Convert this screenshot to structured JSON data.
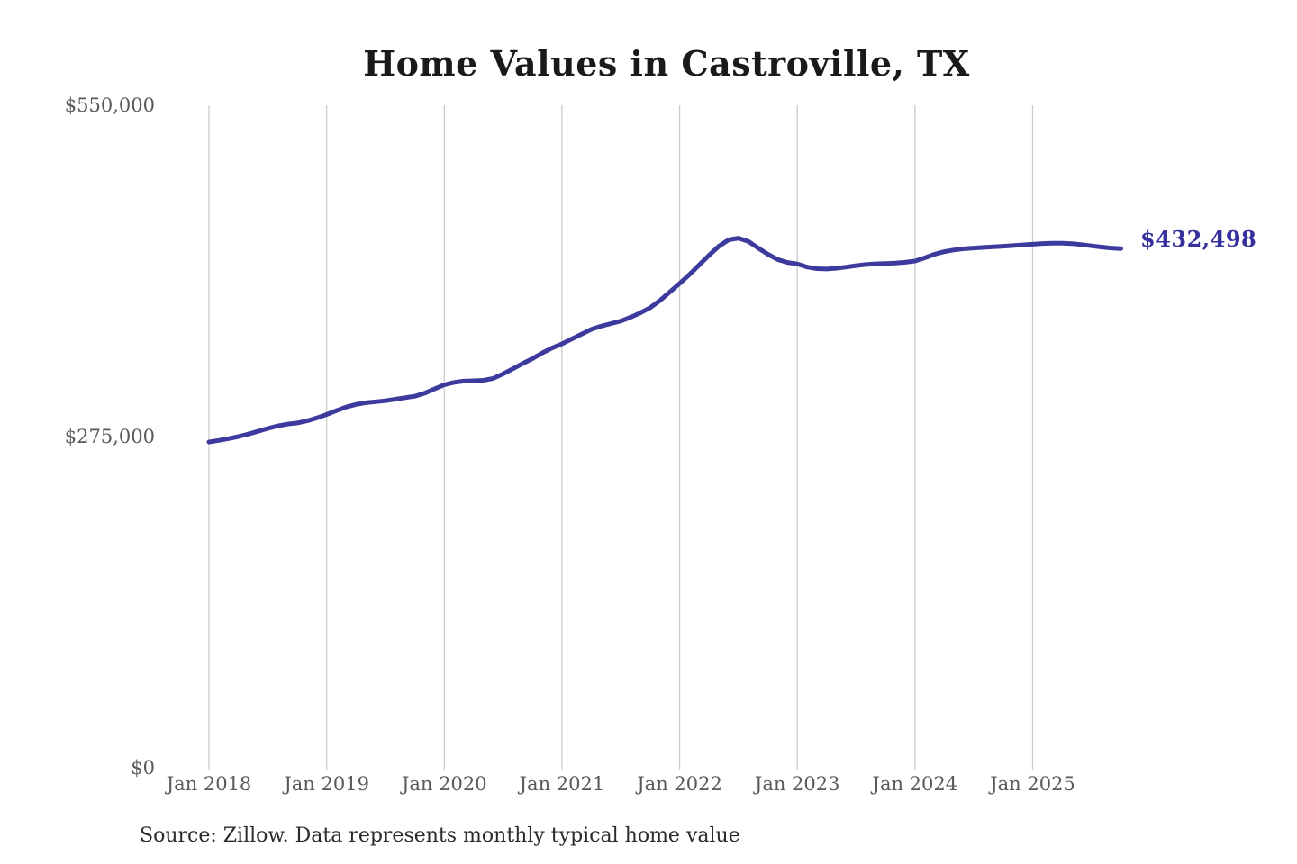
{
  "title": "Home Values in Castroville, TX",
  "annotation": {
    "end_value_label": "$432,498"
  },
  "source_note": "Source: Zillow. Data represents monthly typical home value",
  "colors": {
    "background": "#ffffff",
    "line": "#3d3a9e",
    "end_label": "#34309e",
    "gridline": "#cccccc",
    "axis_label": "#595959",
    "title": "#1a1a1a",
    "source": "#2b2b2b"
  },
  "chart_data": {
    "type": "line",
    "title": "Home Values in Castroville, TX",
    "xlabel": "",
    "ylabel": "",
    "x_unit": "month",
    "x_start": "2018-01",
    "x_end": "2025-10",
    "x_tick_labels": [
      "Jan 2018",
      "Jan 2019",
      "Jan 2020",
      "Jan 2021",
      "Jan 2022",
      "Jan 2023",
      "Jan 2024",
      "Jan 2025"
    ],
    "x_tick_month_indices": [
      0,
      12,
      24,
      36,
      48,
      60,
      72,
      84
    ],
    "y_tick_labels": [
      "$0",
      "$275,000",
      "$550,000"
    ],
    "y_tick_values": [
      0,
      275000,
      550000
    ],
    "ylim": [
      0,
      550000
    ],
    "grid": "vertical-only",
    "legend": "none",
    "end_label": "$432,498",
    "final_value": 432498,
    "series": [
      {
        "name": "Monthly typical home value",
        "values": [
          272000,
          273300,
          274800,
          276500,
          278500,
          280800,
          283200,
          285300,
          286800,
          287800,
          289500,
          292000,
          294800,
          298000,
          301000,
          303200,
          304600,
          305400,
          306200,
          307500,
          308800,
          310000,
          312500,
          316000,
          319500,
          321500,
          322500,
          322800,
          323200,
          324800,
          328500,
          332800,
          337200,
          341200,
          346000,
          350000,
          353500,
          357500,
          361500,
          365500,
          368200,
          370300,
          372400,
          375500,
          379200,
          383500,
          389500,
          396500,
          403600,
          411000,
          419000,
          427000,
          434500,
          439800,
          441200,
          438500,
          433000,
          427800,
          423500,
          421000,
          419800,
          417200,
          415900,
          415600,
          416200,
          417200,
          418400,
          419300,
          419900,
          420200,
          420600,
          421200,
          422200,
          424800,
          427800,
          430000,
          431400,
          432400,
          433000,
          433500,
          434000,
          434500,
          435000,
          435600,
          436100,
          436700,
          437000,
          437000,
          436600,
          435800,
          434800,
          433800,
          433000,
          432498
        ]
      }
    ]
  }
}
